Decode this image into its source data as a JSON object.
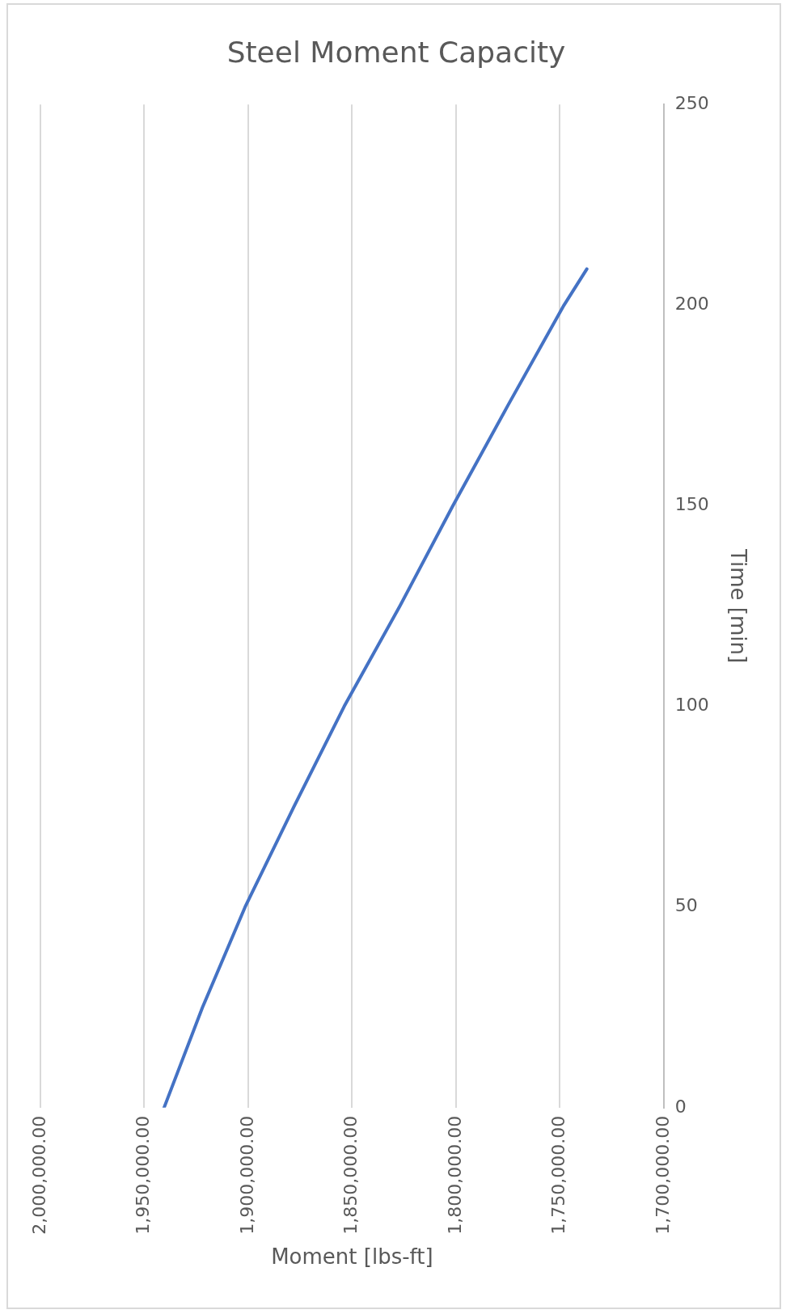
{
  "chart_data": {
    "type": "line",
    "title": "Steel Moment Capacity",
    "xlabel": "Moment [lbs-ft]",
    "ylabel": "Time [min]",
    "series": [
      {
        "color": "#4472c4",
        "x": [
          1940500,
          1922000,
          1901500,
          1878000,
          1853800,
          1827000,
          1801500,
          1775000,
          1748000,
          1737000
        ],
        "values": [
          0,
          25,
          50,
          75,
          100,
          125,
          150,
          175,
          200,
          209
        ]
      }
    ],
    "xlim": [
      2000000,
      1700000
    ],
    "xticks": [
      {
        "value": 2000000,
        "label": "2,000,000.00"
      },
      {
        "value": 1950000,
        "label": "1,950,000.00"
      },
      {
        "value": 1900000,
        "label": "1,900,000.00"
      },
      {
        "value": 1850000,
        "label": "1,850,000.00"
      },
      {
        "value": 1800000,
        "label": "1,800,000.00"
      },
      {
        "value": 1750000,
        "label": "1,750,000.00"
      },
      {
        "value": 1700000,
        "label": "1,700,000.00"
      }
    ],
    "ylim": [
      0,
      250
    ],
    "yticks": [
      0,
      50,
      100,
      150,
      200,
      250
    ],
    "grid": "x",
    "legend": false,
    "marker": "none",
    "line_style": "solid"
  }
}
